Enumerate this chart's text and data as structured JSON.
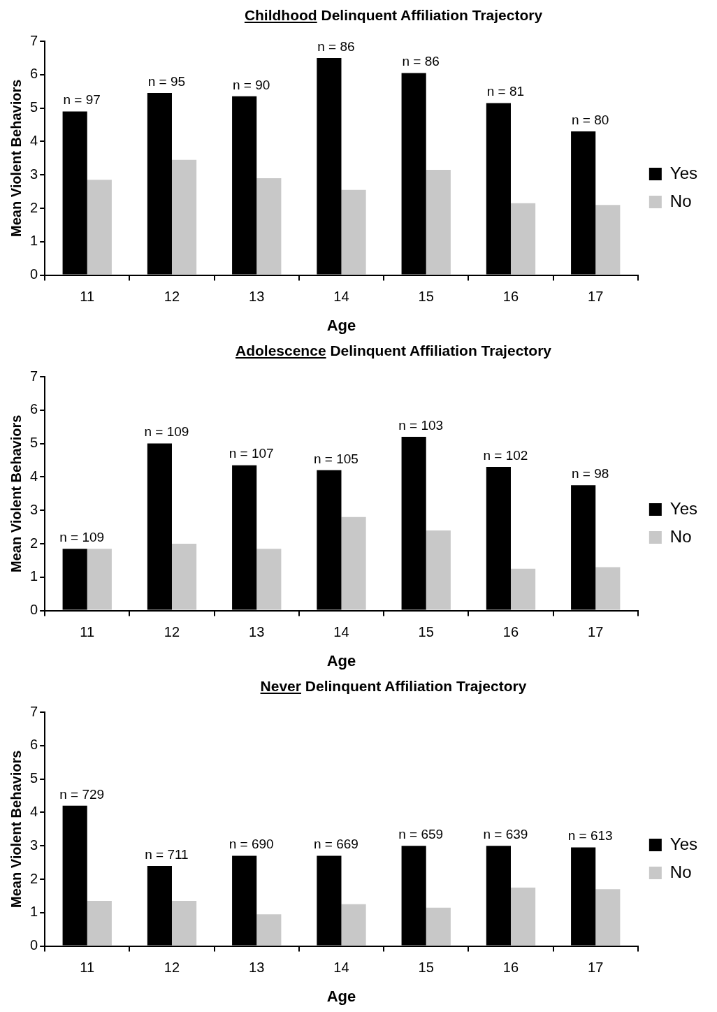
{
  "chart_data": [
    {
      "type": "bar",
      "title": "Childhood Delinquent Affiliation Trajectory",
      "xlabel": "Age",
      "ylabel": "Mean Violent Behaviors",
      "categories": [
        "11",
        "12",
        "13",
        "14",
        "15",
        "16",
        "17"
      ],
      "series": [
        {
          "name": "Yes",
          "color": "#000000",
          "values": [
            4.9,
            5.45,
            5.35,
            6.5,
            6.05,
            5.15,
            4.3
          ]
        },
        {
          "name": "No",
          "color": "#c8c8c8",
          "values": [
            2.85,
            3.45,
            2.9,
            2.55,
            3.15,
            2.15,
            2.1
          ]
        }
      ],
      "ylim": [
        0,
        7
      ],
      "yticks": [
        0,
        1,
        2,
        3,
        4,
        5,
        6,
        7
      ],
      "grid": false,
      "legend": "right",
      "annotations": [
        {
          "text": "n = 97",
          "x": "11",
          "y": 4.9
        },
        {
          "text": "n = 95",
          "x": "12",
          "y": 5.45
        },
        {
          "text": "n = 90",
          "x": "13",
          "y": 5.35
        },
        {
          "text": "n = 86",
          "x": "14",
          "y": 6.5
        },
        {
          "text": "n = 86",
          "x": "15",
          "y": 6.05
        },
        {
          "text": "n = 81",
          "x": "16",
          "y": 5.15
        },
        {
          "text": "n = 80",
          "x": "17",
          "y": 4.3
        }
      ]
    },
    {
      "type": "bar",
      "title": "Adolescence Delinquent Affiliation Trajectory",
      "xlabel": "Age",
      "ylabel": "Mean Violent Behaviors",
      "categories": [
        "11",
        "12",
        "13",
        "14",
        "15",
        "16",
        "17"
      ],
      "series": [
        {
          "name": "Yes",
          "color": "#000000",
          "values": [
            1.85,
            5.0,
            4.35,
            4.2,
            5.2,
            4.3,
            3.75
          ]
        },
        {
          "name": "No",
          "color": "#c8c8c8",
          "values": [
            1.85,
            2.0,
            1.85,
            2.8,
            2.4,
            1.25,
            1.3
          ]
        }
      ],
      "ylim": [
        0,
        7
      ],
      "yticks": [
        0,
        1,
        2,
        3,
        4,
        5,
        6,
        7
      ],
      "grid": false,
      "legend": "right",
      "annotations": [
        {
          "text": "n = 109",
          "x": "11",
          "y": 1.85
        },
        {
          "text": "n = 109",
          "x": "12",
          "y": 5.0
        },
        {
          "text": "n = 107",
          "x": "13",
          "y": 4.35
        },
        {
          "text": "n = 105",
          "x": "14",
          "y": 4.2
        },
        {
          "text": "n = 103",
          "x": "15",
          "y": 5.2
        },
        {
          "text": "n = 102",
          "x": "16",
          "y": 4.3
        },
        {
          "text": "n = 98",
          "x": "17",
          "y": 3.75
        }
      ]
    },
    {
      "type": "bar",
      "title": "Never Delinquent Affiliation Trajectory",
      "xlabel": "Age",
      "ylabel": "Mean Violent Behaviors",
      "categories": [
        "11",
        "12",
        "13",
        "14",
        "15",
        "16",
        "17"
      ],
      "series": [
        {
          "name": "Yes",
          "color": "#000000",
          "values": [
            4.2,
            2.4,
            2.7,
            2.7,
            3.0,
            3.0,
            2.95
          ]
        },
        {
          "name": "No",
          "color": "#c8c8c8",
          "values": [
            1.35,
            1.35,
            0.95,
            1.25,
            1.15,
            1.75,
            1.7
          ]
        }
      ],
      "ylim": [
        0,
        7
      ],
      "yticks": [
        0,
        1,
        2,
        3,
        4,
        5,
        6,
        7
      ],
      "grid": false,
      "legend": "right",
      "annotations": [
        {
          "text": "n = 729",
          "x": "11",
          "y": 4.2
        },
        {
          "text": "n = 711",
          "x": "12",
          "y": 2.4
        },
        {
          "text": "n = 690",
          "x": "13",
          "y": 2.7
        },
        {
          "text": "n = 669",
          "x": "14",
          "y": 2.7
        },
        {
          "text": "n = 659",
          "x": "15",
          "y": 3.0
        },
        {
          "text": "n = 639",
          "x": "16",
          "y": 3.0
        },
        {
          "text": "n = 613",
          "x": "17",
          "y": 2.95
        }
      ]
    }
  ]
}
